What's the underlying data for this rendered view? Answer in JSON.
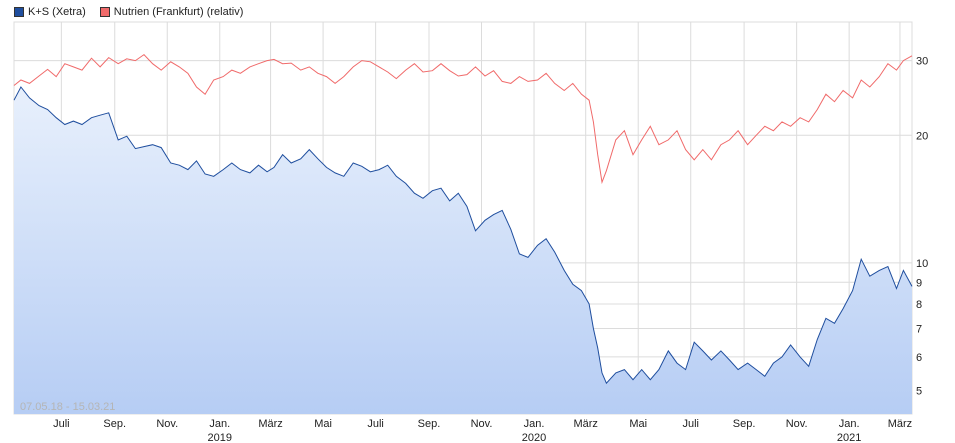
{
  "legend": {
    "series1": "K+S (Xetra)",
    "series2": "Nutrien (Frankfurt) (relativ)"
  },
  "range_label": "07.05.18 - 15.03.21",
  "colors": {
    "ks_line": "#1f4e9e",
    "ks_fill_top": "#e8f0fc",
    "ks_fill_bottom": "#b6cdf4",
    "nutrien_line": "#f06a6a",
    "grid": "#dcdcdc"
  },
  "chart_data": {
    "type": "line",
    "x_scale": "time",
    "y_scale": "log",
    "ylim": [
      4.4,
      37
    ],
    "yticks": [
      5,
      6,
      7,
      8,
      9,
      10,
      20,
      30
    ],
    "grid": true,
    "legend_position": "top-left",
    "x_ticks": [
      {
        "label": "Juli",
        "date": "2018-07-01"
      },
      {
        "label": "Sep.",
        "date": "2018-09-01"
      },
      {
        "label": "Nov.",
        "date": "2018-11-01"
      },
      {
        "label": "Jan.",
        "year": "2019",
        "date": "2019-01-01"
      },
      {
        "label": "März",
        "date": "2019-03-01"
      },
      {
        "label": "Mai",
        "date": "2019-05-01"
      },
      {
        "label": "Juli",
        "date": "2019-07-01"
      },
      {
        "label": "Sep.",
        "date": "2019-09-01"
      },
      {
        "label": "Nov.",
        "date": "2019-11-01"
      },
      {
        "label": "Jan.",
        "year": "2020",
        "date": "2020-01-01"
      },
      {
        "label": "März",
        "date": "2020-03-01"
      },
      {
        "label": "Mai",
        "date": "2020-05-01"
      },
      {
        "label": "Juli",
        "date": "2020-07-01"
      },
      {
        "label": "Sep.",
        "date": "2020-09-01"
      },
      {
        "label": "Nov.",
        "date": "2020-11-01"
      },
      {
        "label": "Jan.",
        "year": "2021",
        "date": "2021-01-01"
      },
      {
        "label": "März",
        "date": "2021-03-01"
      }
    ],
    "series": [
      {
        "name": "K+S (Xetra)",
        "x": [
          "2018-05-07",
          "2018-05-15",
          "2018-05-25",
          "2018-06-05",
          "2018-06-15",
          "2018-06-25",
          "2018-07-05",
          "2018-07-15",
          "2018-07-25",
          "2018-08-05",
          "2018-08-15",
          "2018-08-25",
          "2018-09-05",
          "2018-09-15",
          "2018-09-25",
          "2018-10-05",
          "2018-10-15",
          "2018-10-25",
          "2018-11-05",
          "2018-11-15",
          "2018-11-25",
          "2018-12-05",
          "2018-12-15",
          "2018-12-25",
          "2019-01-05",
          "2019-01-15",
          "2019-01-25",
          "2019-02-05",
          "2019-02-15",
          "2019-02-25",
          "2019-03-05",
          "2019-03-15",
          "2019-03-25",
          "2019-04-05",
          "2019-04-15",
          "2019-04-25",
          "2019-05-05",
          "2019-05-15",
          "2019-05-25",
          "2019-06-05",
          "2019-06-15",
          "2019-06-25",
          "2019-07-05",
          "2019-07-15",
          "2019-07-25",
          "2019-08-05",
          "2019-08-15",
          "2019-08-25",
          "2019-09-05",
          "2019-09-15",
          "2019-09-25",
          "2019-10-05",
          "2019-10-15",
          "2019-10-25",
          "2019-11-05",
          "2019-11-15",
          "2019-11-25",
          "2019-12-05",
          "2019-12-15",
          "2019-12-25",
          "2020-01-05",
          "2020-01-15",
          "2020-01-25",
          "2020-02-05",
          "2020-02-15",
          "2020-02-25",
          "2020-03-05",
          "2020-03-10",
          "2020-03-15",
          "2020-03-20",
          "2020-03-25",
          "2020-04-05",
          "2020-04-15",
          "2020-04-25",
          "2020-05-05",
          "2020-05-15",
          "2020-05-25",
          "2020-06-05",
          "2020-06-15",
          "2020-06-25",
          "2020-07-05",
          "2020-07-15",
          "2020-07-25",
          "2020-08-05",
          "2020-08-15",
          "2020-08-25",
          "2020-09-05",
          "2020-09-15",
          "2020-09-25",
          "2020-10-05",
          "2020-10-15",
          "2020-10-25",
          "2020-11-05",
          "2020-11-15",
          "2020-11-25",
          "2020-12-05",
          "2020-12-15",
          "2020-12-25",
          "2021-01-05",
          "2021-01-15",
          "2021-01-25",
          "2021-02-05",
          "2021-02-15",
          "2021-02-25",
          "2021-03-05",
          "2021-03-15"
        ],
        "y": [
          24.2,
          26.0,
          24.5,
          23.5,
          23.0,
          22.0,
          21.2,
          21.6,
          21.2,
          22.0,
          22.3,
          22.6,
          19.5,
          19.9,
          18.6,
          18.8,
          19.0,
          18.7,
          17.2,
          17.0,
          16.6,
          17.4,
          16.2,
          16.0,
          16.6,
          17.2,
          16.6,
          16.3,
          17.0,
          16.4,
          16.8,
          18.0,
          17.2,
          17.6,
          18.5,
          17.6,
          16.8,
          16.3,
          16.0,
          17.2,
          16.9,
          16.4,
          16.6,
          17.0,
          16.0,
          15.4,
          14.6,
          14.2,
          14.8,
          15.0,
          14.0,
          14.6,
          13.6,
          11.9,
          12.6,
          13.0,
          13.3,
          12.0,
          10.5,
          10.3,
          11.0,
          11.4,
          10.6,
          9.6,
          8.9,
          8.6,
          8.0,
          7.0,
          6.3,
          5.5,
          5.2,
          5.5,
          5.6,
          5.3,
          5.6,
          5.3,
          5.6,
          6.2,
          5.8,
          5.6,
          6.5,
          6.2,
          5.9,
          6.2,
          5.9,
          5.6,
          5.8,
          5.6,
          5.4,
          5.8,
          6.0,
          6.4,
          6.0,
          5.7,
          6.6,
          7.4,
          7.2,
          7.8,
          8.6,
          10.2,
          9.3,
          9.6,
          9.8,
          8.7,
          9.6,
          8.8
        ]
      },
      {
        "name": "Nutrien (Frankfurt) (relativ)",
        "x": [
          "2018-05-07",
          "2018-05-15",
          "2018-05-25",
          "2018-06-05",
          "2018-06-15",
          "2018-06-25",
          "2018-07-05",
          "2018-07-15",
          "2018-07-25",
          "2018-08-05",
          "2018-08-15",
          "2018-08-25",
          "2018-09-05",
          "2018-09-15",
          "2018-09-25",
          "2018-10-05",
          "2018-10-15",
          "2018-10-25",
          "2018-11-05",
          "2018-11-15",
          "2018-11-25",
          "2018-12-05",
          "2018-12-15",
          "2018-12-25",
          "2019-01-05",
          "2019-01-15",
          "2019-01-25",
          "2019-02-05",
          "2019-02-15",
          "2019-02-25",
          "2019-03-05",
          "2019-03-15",
          "2019-03-25",
          "2019-04-05",
          "2019-04-15",
          "2019-04-25",
          "2019-05-05",
          "2019-05-15",
          "2019-05-25",
          "2019-06-05",
          "2019-06-15",
          "2019-06-25",
          "2019-07-05",
          "2019-07-15",
          "2019-07-25",
          "2019-08-05",
          "2019-08-15",
          "2019-08-25",
          "2019-09-05",
          "2019-09-15",
          "2019-09-25",
          "2019-10-05",
          "2019-10-15",
          "2019-10-25",
          "2019-11-05",
          "2019-11-15",
          "2019-11-25",
          "2019-12-05",
          "2019-12-15",
          "2019-12-25",
          "2020-01-05",
          "2020-01-15",
          "2020-01-25",
          "2020-02-05",
          "2020-02-15",
          "2020-02-25",
          "2020-03-05",
          "2020-03-10",
          "2020-03-15",
          "2020-03-20",
          "2020-03-25",
          "2020-04-05",
          "2020-04-15",
          "2020-04-25",
          "2020-05-05",
          "2020-05-15",
          "2020-05-25",
          "2020-06-05",
          "2020-06-15",
          "2020-06-25",
          "2020-07-05",
          "2020-07-15",
          "2020-07-25",
          "2020-08-05",
          "2020-08-15",
          "2020-08-25",
          "2020-09-05",
          "2020-09-15",
          "2020-09-25",
          "2020-10-05",
          "2020-10-15",
          "2020-10-25",
          "2020-11-05",
          "2020-11-15",
          "2020-11-25",
          "2020-12-05",
          "2020-12-15",
          "2020-12-25",
          "2021-01-05",
          "2021-01-15",
          "2021-01-25",
          "2021-02-05",
          "2021-02-15",
          "2021-02-25",
          "2021-03-05",
          "2021-03-15"
        ],
        "y": [
          26.2,
          27.0,
          26.5,
          27.6,
          28.6,
          27.5,
          29.5,
          29.0,
          28.5,
          30.4,
          29.0,
          30.5,
          29.5,
          30.3,
          30.0,
          31.0,
          29.5,
          28.5,
          29.8,
          29.0,
          28.0,
          26.0,
          25.0,
          27.0,
          27.5,
          28.5,
          28.0,
          29.0,
          29.5,
          30.0,
          30.2,
          29.5,
          29.6,
          28.5,
          29.0,
          28.0,
          27.5,
          26.5,
          27.5,
          29.0,
          30.0,
          29.8,
          29.0,
          28.2,
          27.2,
          28.5,
          29.5,
          28.2,
          28.4,
          29.5,
          28.4,
          27.6,
          27.8,
          29.0,
          27.6,
          28.4,
          26.8,
          26.5,
          27.5,
          26.8,
          27.0,
          28.0,
          26.5,
          25.5,
          26.5,
          25.0,
          24.2,
          21.5,
          18.0,
          15.5,
          16.5,
          19.5,
          20.5,
          18.0,
          19.5,
          21.0,
          19.0,
          19.5,
          20.5,
          18.5,
          17.5,
          18.5,
          17.5,
          19.0,
          19.5,
          20.5,
          19.0,
          20.0,
          21.0,
          20.5,
          21.5,
          21.0,
          22.0,
          21.5,
          23.0,
          25.0,
          24.0,
          25.5,
          24.5,
          27.0,
          26.0,
          27.5,
          29.5,
          28.5,
          30.0,
          30.8
        ]
      }
    ]
  }
}
